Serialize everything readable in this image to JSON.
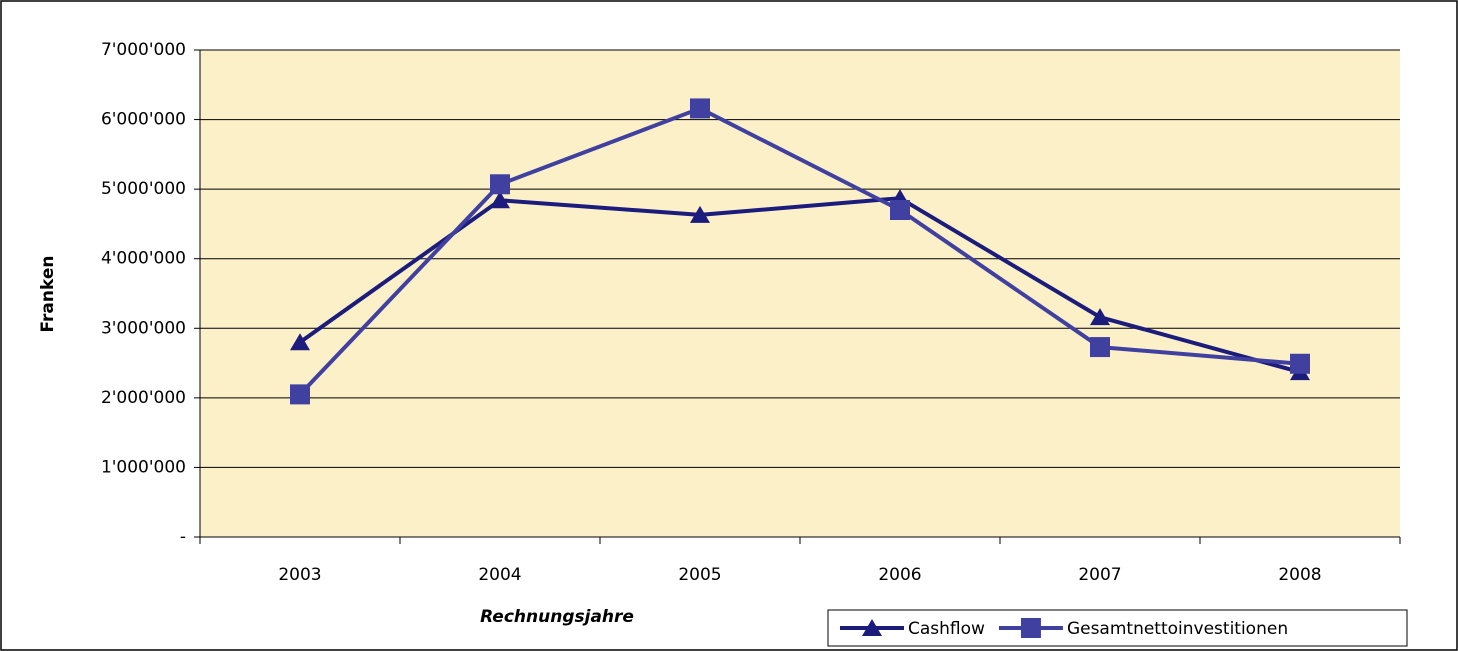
{
  "chart_data": {
    "type": "line",
    "categories": [
      "2003",
      "2004",
      "2005",
      "2006",
      "2007",
      "2008"
    ],
    "series": [
      {
        "name": "Cashflow",
        "color": "#1c1c7c",
        "marker": "triangle",
        "values": [
          2800000,
          4840000,
          4630000,
          4870000,
          3160000,
          2370000
        ]
      },
      {
        "name": "Gesamtnettoinvestitionen",
        "color": "#4040a0",
        "marker": "square",
        "values": [
          2050000,
          5070000,
          6160000,
          4700000,
          2730000,
          2490000
        ]
      }
    ],
    "ylabel": "Franken",
    "xlabel": "Rechnungsjahre",
    "ylim": [
      0,
      7000000
    ],
    "yticks": [
      {
        "value": 0,
        "label": "-"
      },
      {
        "value": 1000000,
        "label": "1'000'000"
      },
      {
        "value": 2000000,
        "label": "2'000'000"
      },
      {
        "value": 3000000,
        "label": "3'000'000"
      },
      {
        "value": 4000000,
        "label": "4'000'000"
      },
      {
        "value": 5000000,
        "label": "5'000'000"
      },
      {
        "value": 6000000,
        "label": "6'000'000"
      },
      {
        "value": 7000000,
        "label": "7'000'000"
      }
    ],
    "grid": true,
    "legend": "lower right",
    "plot_background": "#fbf0c8"
  }
}
